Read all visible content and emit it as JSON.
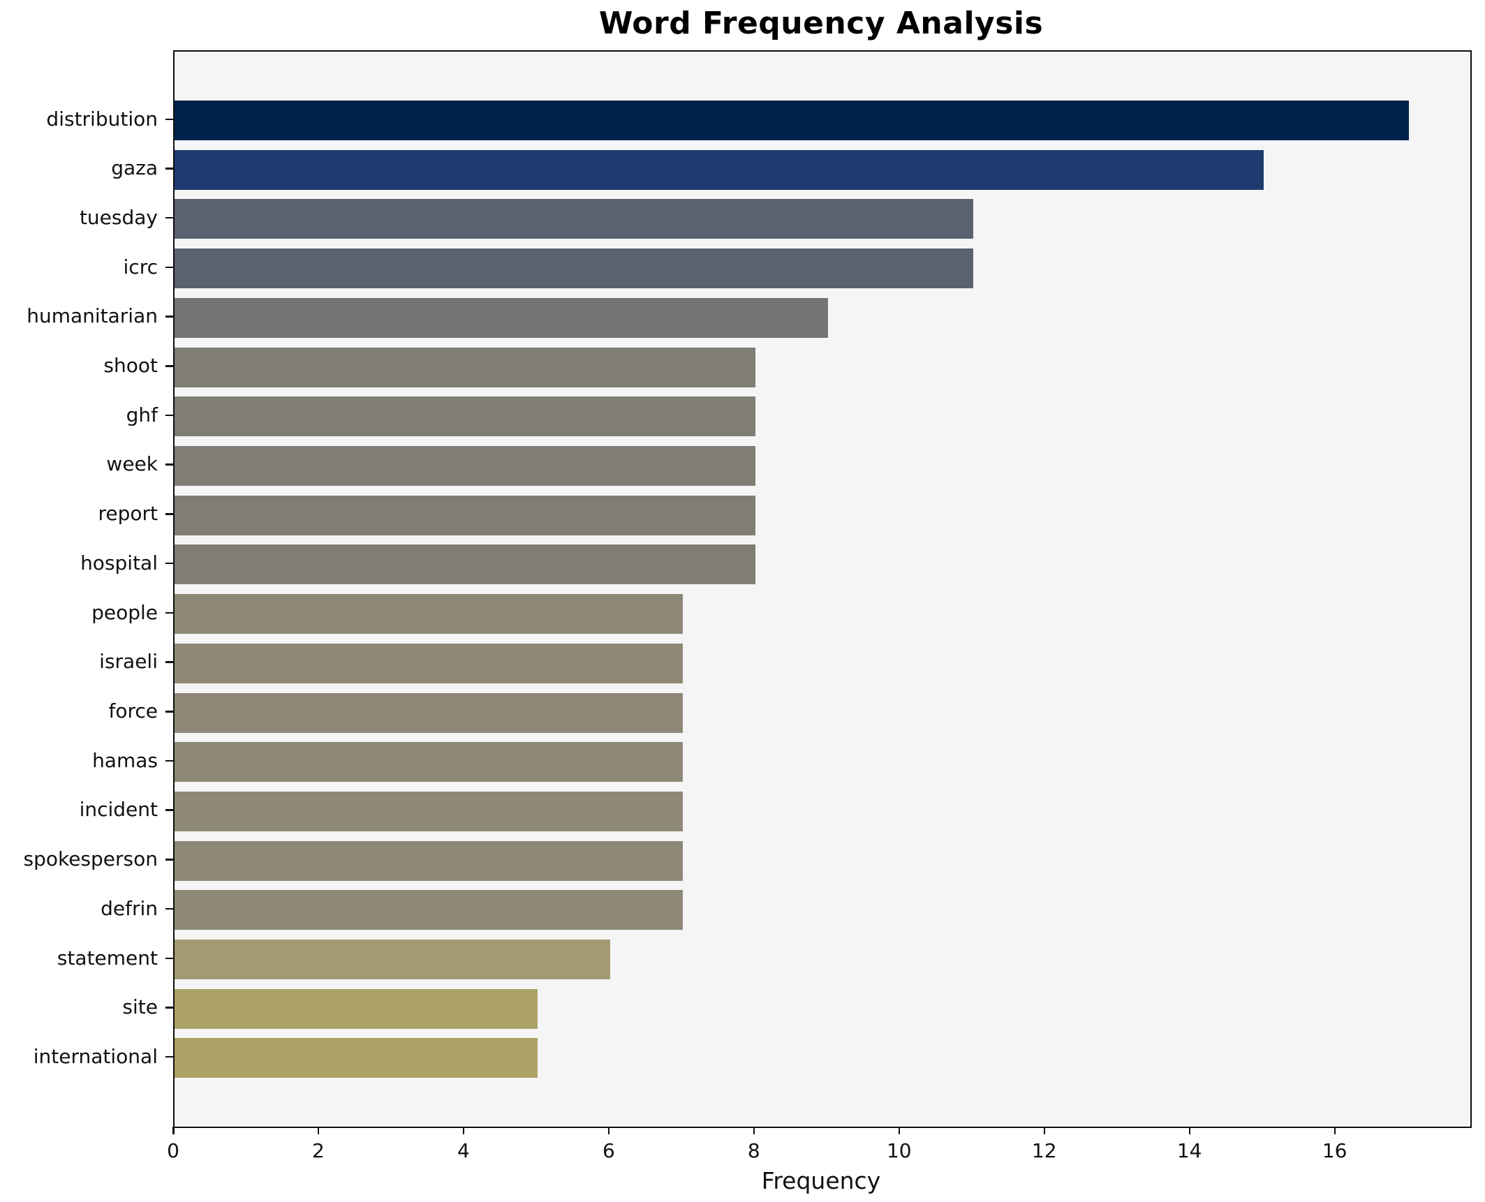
{
  "chart_data": {
    "type": "bar",
    "orientation": "horizontal",
    "title": "Word Frequency Analysis",
    "xlabel": "Frequency",
    "ylabel": "",
    "categories": [
      "distribution",
      "gaza",
      "tuesday",
      "icrc",
      "humanitarian",
      "shoot",
      "ghf",
      "week",
      "report",
      "hospital",
      "people",
      "israeli",
      "force",
      "hamas",
      "incident",
      "spokesperson",
      "defrin",
      "statement",
      "site",
      "international"
    ],
    "values": [
      17,
      15,
      11,
      11,
      9,
      8,
      8,
      8,
      8,
      8,
      7,
      7,
      7,
      7,
      7,
      7,
      7,
      6,
      5,
      5
    ],
    "bar_colors": [
      "#00234d",
      "#1e3a6f",
      "#5a6170",
      "#5a6170",
      "#747473",
      "#7f7d74",
      "#7f7d74",
      "#7f7d74",
      "#7f7d74",
      "#7f7d74",
      "#8e8876",
      "#8e8876",
      "#8e8876",
      "#8e8876",
      "#8e8876",
      "#8e8876",
      "#8e8876",
      "#a39a72",
      "#ada266",
      "#ada266"
    ],
    "xticks": [
      0,
      2,
      4,
      6,
      8,
      10,
      12,
      14,
      16
    ],
    "xlim": [
      0,
      17.85
    ],
    "grid": false,
    "legend": null,
    "plot_background": "#f5f5f6",
    "figure_background": "#ffffff",
    "spine_color": "#0f0f0f",
    "text_color": "#111111"
  }
}
